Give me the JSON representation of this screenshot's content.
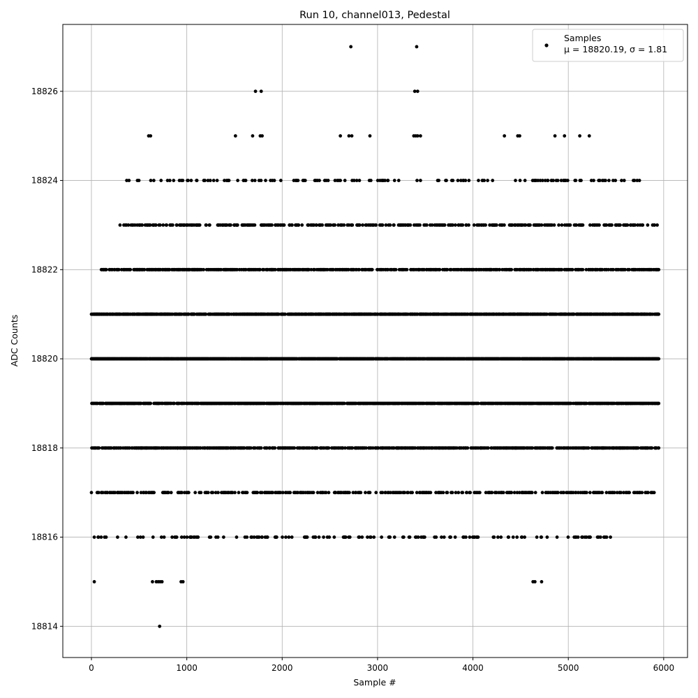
{
  "chart_data": {
    "type": "scatter",
    "title": "Run 10, channel013, Pedestal",
    "xlabel": "Sample #",
    "ylabel": "ADC Counts",
    "xlim": [
      -300,
      6250
    ],
    "ylim": [
      18813.3,
      18827.5
    ],
    "x_ticks": [
      0,
      1000,
      2000,
      3000,
      4000,
      5000,
      6000
    ],
    "y_ticks": [
      18814,
      18816,
      18818,
      18820,
      18822,
      18824,
      18826
    ],
    "grid": true,
    "marker_color": "#000000",
    "legend": {
      "placement": "top-right",
      "series_name": "Samples",
      "stats_text": "μ = 18820.19, σ = 1.81"
    },
    "series": [
      {
        "name": "Samples",
        "level_ranges": [
          {
            "y": 18820,
            "ranges": [
              [
                0,
                5950
              ]
            ]
          },
          {
            "y": 18819,
            "ranges": [
              [
                0,
                5950
              ]
            ]
          },
          {
            "y": 18821,
            "ranges": [
              [
                0,
                5950
              ]
            ]
          },
          {
            "y": 18818,
            "ranges": [
              [
                0,
                5950
              ]
            ]
          },
          {
            "y": 18822,
            "ranges": [
              [
                100,
                5950
              ]
            ]
          },
          {
            "y": 18823,
            "ranges": [
              [
                300,
                5950
              ]
            ]
          },
          {
            "y": 18817,
            "ranges": [
              [
                0,
                5900
              ]
            ]
          },
          {
            "y": 18824,
            "ranges": [
              [
                350,
                5850
              ]
            ]
          },
          {
            "y": 18816,
            "ranges": [
              [
                30,
                5450
              ]
            ]
          }
        ],
        "points": [
          {
            "x": 30,
            "y": 18815
          },
          {
            "x": 640,
            "y": 18815
          },
          {
            "x": 680,
            "y": 18815
          },
          {
            "x": 700,
            "y": 18815
          },
          {
            "x": 720,
            "y": 18815
          },
          {
            "x": 740,
            "y": 18815
          },
          {
            "x": 940,
            "y": 18815
          },
          {
            "x": 960,
            "y": 18815
          },
          {
            "x": 4630,
            "y": 18815
          },
          {
            "x": 4650,
            "y": 18815
          },
          {
            "x": 4720,
            "y": 18815
          },
          {
            "x": 715,
            "y": 18814
          },
          {
            "x": 600,
            "y": 18825
          },
          {
            "x": 620,
            "y": 18825
          },
          {
            "x": 1510,
            "y": 18825
          },
          {
            "x": 1690,
            "y": 18825
          },
          {
            "x": 1770,
            "y": 18825
          },
          {
            "x": 1790,
            "y": 18825
          },
          {
            "x": 2610,
            "y": 18825
          },
          {
            "x": 2700,
            "y": 18825
          },
          {
            "x": 2730,
            "y": 18825
          },
          {
            "x": 2920,
            "y": 18825
          },
          {
            "x": 3380,
            "y": 18825
          },
          {
            "x": 3400,
            "y": 18825
          },
          {
            "x": 3420,
            "y": 18825
          },
          {
            "x": 3450,
            "y": 18825
          },
          {
            "x": 4330,
            "y": 18825
          },
          {
            "x": 4470,
            "y": 18825
          },
          {
            "x": 4490,
            "y": 18825
          },
          {
            "x": 4860,
            "y": 18825
          },
          {
            "x": 4960,
            "y": 18825
          },
          {
            "x": 5120,
            "y": 18825
          },
          {
            "x": 5220,
            "y": 18825
          },
          {
            "x": 1720,
            "y": 18826
          },
          {
            "x": 1780,
            "y": 18826
          },
          {
            "x": 3390,
            "y": 18826
          },
          {
            "x": 3420,
            "y": 18826
          },
          {
            "x": 2720,
            "y": 18827
          },
          {
            "x": 3410,
            "y": 18827
          }
        ]
      }
    ]
  }
}
